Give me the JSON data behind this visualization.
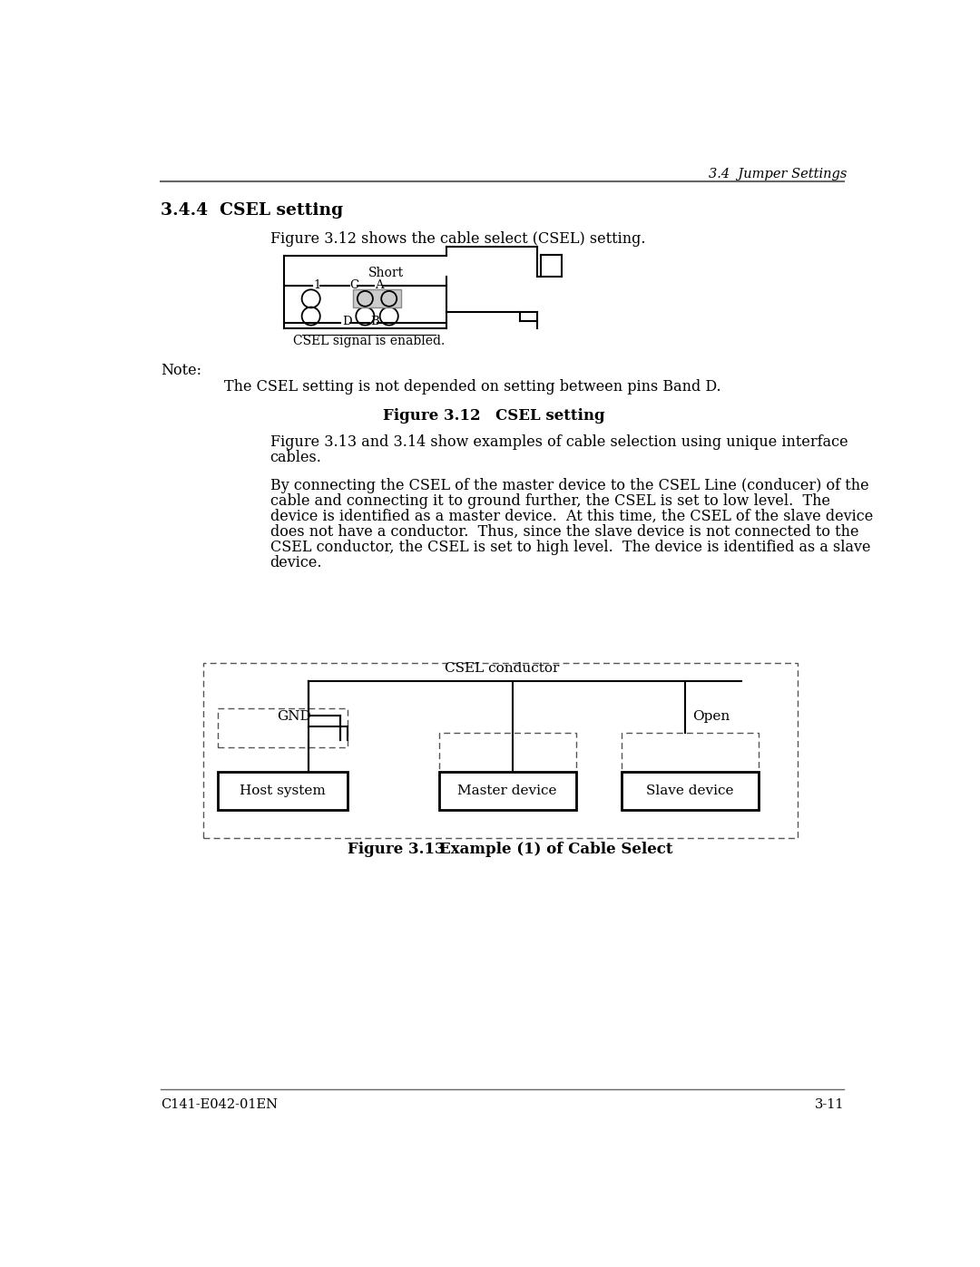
{
  "page_title_right": "3.4  Jumper Settings",
  "section_heading": "3.4.4  CSEL setting",
  "intro_text": "Figure 3.12 shows the cable select (CSEL) setting.",
  "note_label": "Note:",
  "note_text": "The CSEL setting is not depended on setting between pins Band D.",
  "figure_caption_312_a": "Figure 3.12",
  "figure_caption_312_b": "CSEL setting",
  "csel_enabled_label": "CSEL signal is enabled.",
  "body_text_1a": "Figure 3.13 and 3.14 show examples of cable selection using unique interface",
  "body_text_1b": "cables.",
  "body_text_2": "By connecting the CSEL of the master device to the CSEL Line (conducer) of the\ncable and connecting it to ground further, the CSEL is set to low level.  The\ndevice is identified as a master device.  At this time, the CSEL of the slave device\ndoes not have a conductor.  Thus, since the slave device is not connected to the\nCSEL conductor, the CSEL is set to high level.  The device is identified as a slave\ndevice.",
  "figure_caption_313_a": "Figure 3.13",
  "figure_caption_313_b": "Example (1) of Cable Select",
  "csel_conductor_label": "CSEL conductor",
  "gnd_label": "GND",
  "open_label": "Open",
  "short_label": "Short",
  "box_labels": [
    "Host system",
    "Master device",
    "Slave device"
  ],
  "footer_left": "C141-E042-01EN",
  "footer_right": "3-11",
  "bg_color": "#ffffff",
  "text_color": "#000000"
}
